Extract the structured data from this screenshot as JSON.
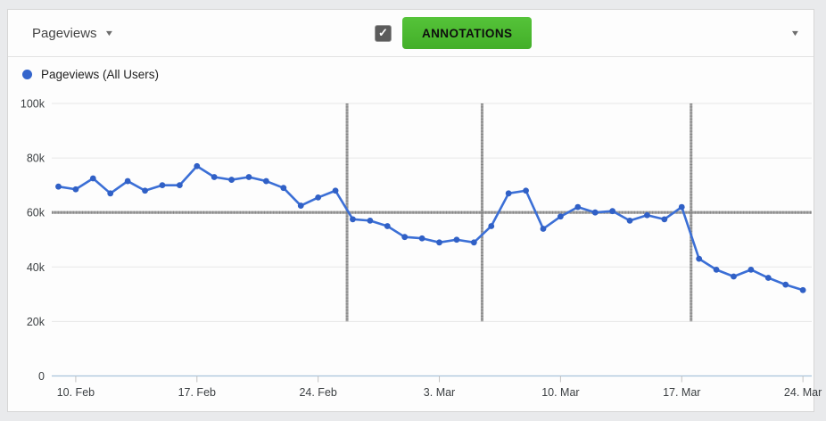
{
  "toolbar": {
    "metric_selector_label": "Pageviews",
    "annotations_button_label": "ANNOTATIONS",
    "annotations_checkbox": {
      "checked": true
    }
  },
  "icons": {
    "dropdown_caret": "▼",
    "checkmark": "✓"
  },
  "legend": {
    "series_label": "Pageviews (All Users)",
    "dot_color": "#3465cc"
  },
  "chart_data": {
    "type": "line",
    "title": "Pageviews (All Users)",
    "x": [
      "9. Feb",
      "10. Feb",
      "11. Feb",
      "12. Feb",
      "13. Feb",
      "14. Feb",
      "15. Feb",
      "16. Feb",
      "17. Feb",
      "18. Feb",
      "19. Feb",
      "20. Feb",
      "21. Feb",
      "22. Feb",
      "23. Feb",
      "24. Feb",
      "25. Feb",
      "26. Feb",
      "27. Feb",
      "28. Feb",
      "1. Mar",
      "2. Mar",
      "3. Mar",
      "4. Mar",
      "5. Mar",
      "6. Mar",
      "7. Mar",
      "8. Mar",
      "9. Mar",
      "10. Mar",
      "11. Mar",
      "12. Mar",
      "13. Mar",
      "14. Mar",
      "15. Mar",
      "16. Mar",
      "17. Mar",
      "18. Mar",
      "19. Mar",
      "20. Mar",
      "21. Mar",
      "22. Mar",
      "23. Mar",
      "24. Mar"
    ],
    "series": [
      {
        "name": "Pageviews (All Users)",
        "color": "#3b6fd6",
        "point_color": "#3060c6",
        "values": [
          69500,
          68500,
          72500,
          67000,
          71500,
          68000,
          70000,
          70000,
          77000,
          73000,
          72000,
          73000,
          71500,
          69000,
          62500,
          65500,
          68000,
          57500,
          57000,
          55000,
          51000,
          50500,
          49000,
          50000,
          49000,
          55000,
          67000,
          68000,
          54000,
          58500,
          62000,
          60000,
          60500,
          57000,
          59000,
          57500,
          62000,
          43000,
          39000,
          36500,
          39000,
          36000,
          33500,
          31500
        ]
      }
    ],
    "ylim": [
      0,
      100000
    ],
    "yticks": [
      {
        "label": "100k",
        "value": 100000
      },
      {
        "label": "80k",
        "value": 80000
      },
      {
        "label": "60k",
        "value": 60000
      },
      {
        "label": "40k",
        "value": 40000
      },
      {
        "label": "20k",
        "value": 20000
      },
      {
        "label": "0",
        "value": 0
      }
    ],
    "xticks": [
      {
        "label": "10. Feb",
        "index": 1
      },
      {
        "label": "17. Feb",
        "index": 8
      },
      {
        "label": "24. Feb",
        "index": 15
      },
      {
        "label": "3. Mar",
        "index": 22
      },
      {
        "label": "10. Mar",
        "index": 29
      },
      {
        "label": "17. Mar",
        "index": 36
      },
      {
        "label": "24. Mar",
        "index": 43
      }
    ],
    "grid": true,
    "legend_position": "top-left",
    "annotations": {
      "vertical_lines": [
        {
          "index": 16.67,
          "between": [
            "25. Feb",
            "26. Feb"
          ]
        },
        {
          "index": 24.47,
          "between": [
            "5. Mar",
            "6. Mar"
          ]
        },
        {
          "index": 36.54,
          "between": [
            "17. Mar",
            "18. Mar"
          ]
        }
      ],
      "horizontal_lines": [
        {
          "value": 60000
        }
      ],
      "vertical_span_values": [
        100000,
        20000
      ],
      "color": "#8f8f8f"
    },
    "style": {
      "grid_color": "#e7e7e7",
      "baseline_color": "#a9c2dc",
      "tick_color": "#c2c2c2",
      "label_color": "#3c4043"
    }
  }
}
